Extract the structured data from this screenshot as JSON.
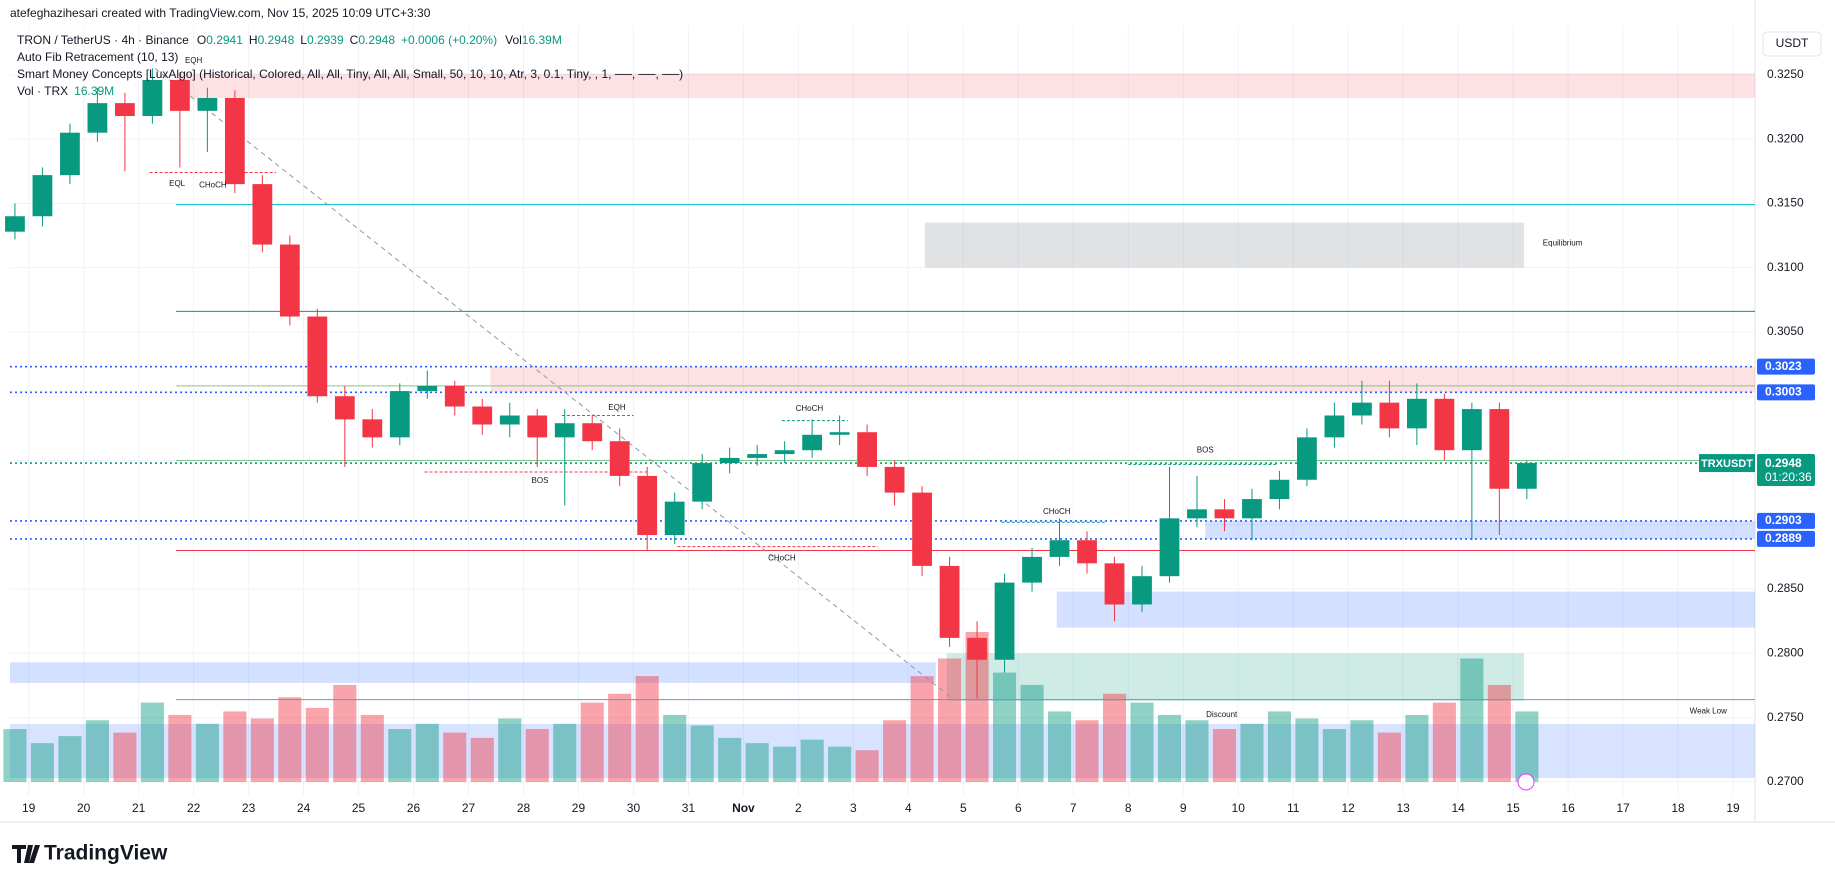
{
  "header": {
    "attribution": "atefeghazihesari created with TradingView.com, Nov 15, 2025 10:09 UTC+3:30",
    "currency": "USDT",
    "brand": "TradingView"
  },
  "chart_data": {
    "type": "candlestick",
    "symbol": "TRON / TetherUS · 4h · Binance",
    "ohlc_labels": [
      "O",
      "H",
      "L",
      "C"
    ],
    "ohlc": [
      0.2941,
      0.2948,
      0.2939,
      0.2948
    ],
    "change": "+0.0006 (+0.20%)",
    "vol_label": "Vol",
    "vol": "16.39M",
    "indicators": [
      "Auto Fib Retracement (10, 13)",
      "Smart Money Concepts [LuxAlgo] (Historical, Colored, All, All, Tiny, All, All, Small, 50, 10, 10, Atr, 3, 0.1, Tiny, , 1, ──, ──, ──)",
      "Vol · TRX"
    ],
    "up_color": "#089981",
    "down_color": "#f23645",
    "x": [
      -0.25,
      0.25,
      0.75,
      1.25,
      1.75,
      2.25,
      2.75,
      3.25,
      3.75,
      4.25,
      4.75,
      5.25,
      5.75,
      6.25,
      6.75,
      7.25,
      7.75,
      8.25,
      8.75,
      9.25,
      9.75,
      10.25,
      10.75,
      11.25,
      11.75,
      12.25,
      12.75,
      13.25,
      13.75,
      14.25,
      14.75,
      15.25,
      15.75,
      16.25,
      16.75,
      17.25,
      17.75,
      18.25,
      18.75,
      19.25,
      19.75,
      20.25,
      20.75,
      21.25,
      21.75,
      22.25,
      22.75,
      23.25,
      23.75,
      24.25,
      24.75,
      25.25,
      25.75,
      26.25,
      26.75,
      27.25
    ],
    "open": [
      0.3128,
      0.314,
      0.3172,
      0.3205,
      0.3228,
      0.3218,
      0.3246,
      0.3222,
      0.3232,
      0.3165,
      0.3118,
      0.3062,
      0.3,
      0.2982,
      0.2968,
      0.3004,
      0.3008,
      0.2992,
      0.2978,
      0.2985,
      0.2968,
      0.2979,
      0.2965,
      0.2938,
      0.2892,
      0.2918,
      0.2948,
      0.2952,
      0.2955,
      0.2958,
      0.297,
      0.2972,
      0.2945,
      0.2925,
      0.2868,
      0.2812,
      0.2795,
      0.2855,
      0.2875,
      0.2888,
      0.287,
      0.2838,
      0.286,
      0.2905,
      0.2912,
      0.2905,
      0.292,
      0.2935,
      0.2968,
      0.2985,
      0.2995,
      0.2975,
      0.2998,
      0.2958,
      0.299,
      0.2928
    ],
    "high": [
      0.315,
      0.3178,
      0.3212,
      0.324,
      0.3236,
      0.3255,
      0.3252,
      0.324,
      0.3238,
      0.3172,
      0.3125,
      0.3068,
      0.3008,
      0.299,
      0.301,
      0.302,
      0.3012,
      0.2998,
      0.2995,
      0.299,
      0.299,
      0.2985,
      0.2975,
      0.2945,
      0.2925,
      0.2955,
      0.296,
      0.2962,
      0.2965,
      0.2982,
      0.2985,
      0.2978,
      0.295,
      0.293,
      0.2875,
      0.2825,
      0.2862,
      0.2882,
      0.2905,
      0.2895,
      0.2875,
      0.2868,
      0.2945,
      0.2938,
      0.292,
      0.2928,
      0.2942,
      0.2975,
      0.2995,
      0.3012,
      0.3012,
      0.301,
      0.3002,
      0.2995,
      0.2995,
      0.295
    ],
    "low": [
      0.3122,
      0.3132,
      0.3165,
      0.3198,
      0.3175,
      0.3212,
      0.3178,
      0.319,
      0.3158,
      0.3112,
      0.3055,
      0.2995,
      0.2945,
      0.296,
      0.2962,
      0.2998,
      0.2985,
      0.297,
      0.2968,
      0.2945,
      0.2915,
      0.2958,
      0.293,
      0.288,
      0.2885,
      0.2912,
      0.294,
      0.2946,
      0.2948,
      0.2952,
      0.2962,
      0.2938,
      0.2915,
      0.286,
      0.2805,
      0.2765,
      0.2785,
      0.2848,
      0.2868,
      0.2862,
      0.2825,
      0.2832,
      0.2855,
      0.2898,
      0.2895,
      0.2888,
      0.2912,
      0.293,
      0.296,
      0.2978,
      0.2968,
      0.2962,
      0.295,
      0.2888,
      0.2892,
      0.292
    ],
    "close": [
      0.314,
      0.3172,
      0.3205,
      0.3228,
      0.3218,
      0.3246,
      0.3222,
      0.3232,
      0.3165,
      0.3118,
      0.3062,
      0.3,
      0.2982,
      0.2968,
      0.3004,
      0.3008,
      0.2992,
      0.2978,
      0.2985,
      0.2968,
      0.2979,
      0.2965,
      0.2938,
      0.2892,
      0.2918,
      0.2948,
      0.2952,
      0.2955,
      0.2958,
      0.297,
      0.2972,
      0.2945,
      0.2925,
      0.2868,
      0.2812,
      0.2795,
      0.2855,
      0.2875,
      0.2888,
      0.287,
      0.2838,
      0.286,
      0.2905,
      0.2912,
      0.2905,
      0.292,
      0.2935,
      0.2968,
      0.2985,
      0.2995,
      0.2975,
      0.2998,
      0.2958,
      0.299,
      0.2928,
      0.2948
    ],
    "volume": [
      30,
      22,
      26,
      35,
      28,
      45,
      38,
      33,
      40,
      36,
      48,
      42,
      55,
      38,
      30,
      33,
      28,
      25,
      36,
      30,
      33,
      45,
      50,
      60,
      38,
      32,
      25,
      22,
      20,
      24,
      20,
      18,
      35,
      60,
      70,
      85,
      62,
      55,
      40,
      35,
      50,
      45,
      38,
      35,
      30,
      33,
      40,
      36,
      30,
      35,
      28,
      38,
      45,
      70,
      55,
      40
    ],
    "xlim": [
      -0.34,
      31.4
    ],
    "ylim": [
      0.2689,
      0.3288
    ],
    "xticks": [
      {
        "value": 0,
        "label": "19"
      },
      {
        "value": 1,
        "label": "20"
      },
      {
        "value": 2,
        "label": "21"
      },
      {
        "value": 3,
        "label": "22"
      },
      {
        "value": 4,
        "label": "23"
      },
      {
        "value": 5,
        "label": "24"
      },
      {
        "value": 6,
        "label": "25"
      },
      {
        "value": 7,
        "label": "26"
      },
      {
        "value": 8,
        "label": "27"
      },
      {
        "value": 9,
        "label": "28"
      },
      {
        "value": 10,
        "label": "29"
      },
      {
        "value": 11,
        "label": "30"
      },
      {
        "value": 12,
        "label": "31"
      },
      {
        "value": 13,
        "label": "Nov"
      },
      {
        "value": 14,
        "label": "2"
      },
      {
        "value": 15,
        "label": "3"
      },
      {
        "value": 16,
        "label": "4"
      },
      {
        "value": 17,
        "label": "5"
      },
      {
        "value": 18,
        "label": "6"
      },
      {
        "value": 19,
        "label": "7"
      },
      {
        "value": 20,
        "label": "8"
      },
      {
        "value": 21,
        "label": "9"
      },
      {
        "value": 22,
        "label": "10"
      },
      {
        "value": 23,
        "label": "11"
      },
      {
        "value": 24,
        "label": "12"
      },
      {
        "value": 25,
        "label": "13"
      },
      {
        "value": 26,
        "label": "14"
      },
      {
        "value": 27,
        "label": "15"
      },
      {
        "value": 28,
        "label": "16"
      },
      {
        "value": 29,
        "label": "17"
      },
      {
        "value": 30,
        "label": "18"
      },
      {
        "value": 31,
        "label": "19"
      }
    ],
    "yticks": [
      {
        "value": 0.27,
        "label": "0.2700"
      },
      {
        "value": 0.275,
        "label": "0.2750"
      },
      {
        "value": 0.28,
        "label": "0.2800"
      },
      {
        "value": 0.285,
        "label": "0.2850"
      },
      {
        "value": 0.29,
        "label": "0.2900"
      },
      {
        "value": 0.295,
        "label": "0.2950"
      },
      {
        "value": 0.3,
        "label": "0.3000"
      },
      {
        "value": 0.305,
        "label": "0.3050"
      },
      {
        "value": 0.31,
        "label": "0.3100"
      },
      {
        "value": 0.315,
        "label": "0.3150"
      },
      {
        "value": 0.32,
        "label": "0.3200"
      },
      {
        "value": 0.325,
        "label": "0.3250"
      }
    ],
    "grid": true,
    "zones": [
      {
        "top": 0.3251,
        "bottom": 0.3232,
        "x": [
          2.7,
          31.4
        ],
        "color": "rgba(242,54,69,0.15)"
      },
      {
        "top": 0.3023,
        "bottom": 0.3003,
        "x": [
          8.4,
          31.4
        ],
        "color": "rgba(242,54,69,0.15)"
      },
      {
        "top": 0.3135,
        "bottom": 0.31,
        "x": [
          16.3,
          27.2
        ],
        "color": "rgba(120,123,134,0.22)"
      },
      {
        "top": 0.2903,
        "bottom": 0.2889,
        "x": [
          21.4,
          31.4
        ],
        "color": "rgba(41,98,255,0.2)"
      },
      {
        "top": 0.2848,
        "bottom": 0.282,
        "x": [
          18.7,
          31.4
        ],
        "color": "rgba(41,98,255,0.2)"
      },
      {
        "top": 0.2793,
        "bottom": 0.2777,
        "x": [
          -0.34,
          16.5
        ],
        "color": "rgba(41,98,255,0.2)"
      },
      {
        "top": 0.28,
        "bottom": 0.2763,
        "x": [
          16.7,
          27.2
        ],
        "color": "rgba(8,153,129,0.2)"
      },
      {
        "top": 0.2745,
        "bottom": 0.2703,
        "x": [
          -0.34,
          31.4
        ],
        "color": "rgba(41,98,255,0.18)"
      }
    ],
    "lines": [
      {
        "value": 0.3149,
        "x": [
          2.68,
          31.4
        ],
        "color": "#00bcd4",
        "style": "solid"
      },
      {
        "value": 0.3066,
        "x": [
          2.68,
          31.4
        ],
        "color": "#089981",
        "style": "solid"
      },
      {
        "value": 0.3008,
        "x": [
          2.68,
          31.4
        ],
        "color": "#81c784",
        "style": "solid"
      },
      {
        "value": 0.295,
        "x": [
          2.68,
          31.4
        ],
        "color": "#81c784",
        "style": "solid"
      },
      {
        "value": 0.288,
        "x": [
          2.68,
          31.4
        ],
        "color": "#f23645",
        "style": "solid"
      },
      {
        "value": 0.2764,
        "x": [
          2.68,
          31.4
        ],
        "color": "#5b9bd5",
        "style": "solid"
      },
      {
        "value": 0.3023,
        "x": [
          -0.34,
          31.4
        ],
        "color": "#2962ff",
        "style": "dotted"
      },
      {
        "value": 0.3003,
        "x": [
          -0.34,
          31.4
        ],
        "color": "#2962ff",
        "style": "dotted"
      },
      {
        "value": 0.2903,
        "x": [
          -0.34,
          31.4
        ],
        "color": "#2962ff",
        "style": "dotted"
      },
      {
        "value": 0.2889,
        "x": [
          -0.34,
          31.4
        ],
        "color": "#2962ff",
        "style": "dotted"
      },
      {
        "value": 0.2948,
        "x": [
          -0.34,
          31.4
        ],
        "color": "#089981",
        "style": "dotted"
      }
    ],
    "fib_line": {
      "x": [
        2.3,
        16.8
      ],
      "y": [
        0.3255,
        0.2765
      ],
      "color": "#9598a1"
    },
    "structures": [
      {
        "x": [
          2.2,
          4.5
        ],
        "y": 0.3174,
        "color": "#f23645"
      },
      {
        "x": [
          7.2,
          11.3
        ],
        "y": 0.2941,
        "color": "#f23645"
      },
      {
        "x": [
          9.7,
          11.0
        ],
        "y": 0.2985,
        "color": "#f23645"
      },
      {
        "x": [
          11.8,
          15.45
        ],
        "y": 0.2883,
        "color": "#f23645"
      },
      {
        "x": [
          13.7,
          14.9
        ],
        "y": 0.2981,
        "color": "#089981"
      },
      {
        "x": [
          17.7,
          19.6
        ],
        "y": 0.2902,
        "color": "#089981"
      },
      {
        "x": [
          20.0,
          22.7
        ],
        "y": 0.2947,
        "color": "#089981"
      }
    ],
    "annotations": [
      {
        "text": "EQH",
        "x": 3.0,
        "y": 0.3261,
        "color": "#f23645"
      },
      {
        "text": "EQL",
        "x": 2.7,
        "y": 0.3165,
        "color": "#089981"
      },
      {
        "text": "CHoCH",
        "x": 3.35,
        "y": 0.3164,
        "color": "#f23645"
      },
      {
        "text": "BOS",
        "x": 9.3,
        "y": 0.2934,
        "color": "#f23645"
      },
      {
        "text": "EQH",
        "x": 10.7,
        "y": 0.2991,
        "color": "#f23645"
      },
      {
        "text": "CHoCH",
        "x": 13.7,
        "y": 0.2874,
        "color": "#f23645"
      },
      {
        "text": "CHoCH",
        "x": 14.2,
        "y": 0.299,
        "color": "#089981"
      },
      {
        "text": "CHoCH",
        "x": 18.7,
        "y": 0.291,
        "color": "#089981"
      },
      {
        "text": "BOS",
        "x": 21.4,
        "y": 0.2958,
        "color": "#089981"
      },
      {
        "text": "Equilibrium",
        "x": 27.9,
        "y": 0.3119,
        "color": "#9598a1"
      },
      {
        "text": "Discount",
        "x": 21.7,
        "y": 0.2752,
        "color": "#089981"
      },
      {
        "text": "Weak Low",
        "x": 30.55,
        "y": 0.2755,
        "color": "#089981"
      }
    ],
    "price_tags": [
      {
        "value": 0.3023,
        "color": "#2962ff"
      },
      {
        "value": 0.3003,
        "color": "#2962ff"
      },
      {
        "value": 0.2903,
        "color": "#2962ff"
      },
      {
        "value": 0.2889,
        "color": "#2962ff"
      }
    ],
    "last_price": {
      "name": "TRXUSDT",
      "value": 0.2948,
      "countdown": "01:20:36",
      "color": "#089981"
    }
  }
}
